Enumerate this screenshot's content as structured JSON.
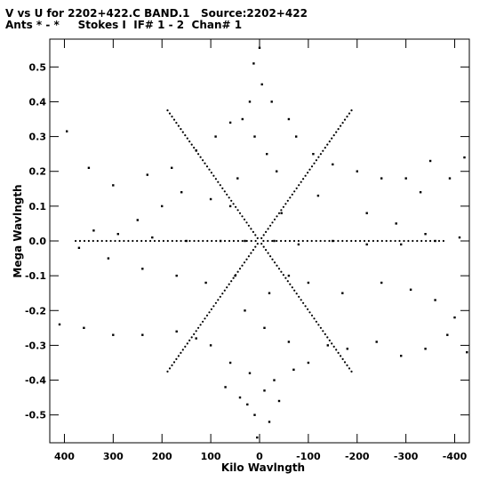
{
  "header": {
    "line1": "V vs U for 2202+422.C BAND.1   Source:2202+422",
    "line2": "Ants * - *     Stokes I  IF# 1 - 2  Chan# 1"
  },
  "chart_data": {
    "type": "scatter",
    "title": "V vs U for 2202+422.C BAND.1   Source:2202+422",
    "subtitle": "Ants * - *     Stokes I  IF# 1 - 2  Chan# 1",
    "xlabel": "Kilo Wavlngth",
    "ylabel": "Mega Wavlngth",
    "xlim": [
      430,
      -430
    ],
    "ylim": [
      -0.58,
      0.58
    ],
    "x_reversed": true,
    "xticks": [
      400,
      300,
      200,
      100,
      0,
      -100,
      -200,
      -300,
      -400
    ],
    "xtick_labels": [
      "400",
      "300",
      "200",
      "100",
      "0",
      "-100",
      "-200",
      "-300",
      "-400"
    ],
    "yticks": [
      0.5,
      0.4,
      0.3,
      0.2,
      0.1,
      0.0,
      -0.1,
      -0.2,
      -0.3,
      -0.4,
      -0.5
    ],
    "ytick_labels": [
      "0.5",
      "0.4",
      "0.3",
      "0.2",
      "0.1",
      "0.0",
      "-0.1",
      "-0.2",
      "-0.3",
      "-0.4",
      "-0.5"
    ],
    "grid": false,
    "marker_color": "#000000",
    "arm_angles_deg": [
      0,
      60,
      120,
      180,
      240,
      300
    ],
    "series": [
      {
        "points": [
          [
            0,
            0.555
          ],
          [
            12,
            0.51
          ],
          [
            -5,
            0.45
          ],
          [
            20,
            0.4
          ],
          [
            35,
            0.35
          ],
          [
            -25,
            0.4
          ],
          [
            -60,
            0.35
          ],
          [
            -75,
            0.3
          ],
          [
            60,
            0.34
          ],
          [
            90,
            0.3
          ],
          [
            -110,
            0.25
          ],
          [
            130,
            0.26
          ],
          [
            -150,
            0.22
          ],
          [
            180,
            0.21
          ],
          [
            -200,
            0.2
          ],
          [
            230,
            0.19
          ],
          [
            -250,
            0.18
          ],
          [
            -300,
            0.18
          ],
          [
            300,
            0.16
          ],
          [
            350,
            0.21
          ],
          [
            395,
            0.315
          ],
          [
            -350,
            0.23
          ],
          [
            -420,
            0.24
          ],
          [
            -390,
            0.18
          ],
          [
            -330,
            0.14
          ],
          [
            160,
            0.14
          ],
          [
            -120,
            0.13
          ],
          [
            100,
            0.12
          ],
          [
            60,
            0.1
          ],
          [
            -45,
            0.08
          ],
          [
            200,
            0.1
          ],
          [
            250,
            0.06
          ],
          [
            -220,
            0.08
          ],
          [
            -280,
            0.05
          ],
          [
            340,
            0.03
          ],
          [
            -340,
            0.02
          ],
          [
            290,
            0.02
          ],
          [
            220,
            0.01
          ],
          [
            150,
            0.0
          ],
          [
            80,
            0.0
          ],
          [
            30,
            0.0
          ],
          [
            -30,
            0.0
          ],
          [
            -80,
            -0.01
          ],
          [
            -150,
            0.0
          ],
          [
            -220,
            -0.01
          ],
          [
            -290,
            -0.01
          ],
          [
            -360,
            0.0
          ],
          [
            -410,
            0.01
          ],
          [
            370,
            -0.02
          ],
          [
            310,
            -0.05
          ],
          [
            240,
            -0.08
          ],
          [
            170,
            -0.1
          ],
          [
            110,
            -0.12
          ],
          [
            50,
            -0.1
          ],
          [
            -60,
            -0.1
          ],
          [
            -100,
            -0.12
          ],
          [
            -170,
            -0.15
          ],
          [
            -250,
            -0.12
          ],
          [
            -310,
            -0.14
          ],
          [
            -360,
            -0.17
          ],
          [
            -400,
            -0.22
          ],
          [
            410,
            -0.24
          ],
          [
            360,
            -0.25
          ],
          [
            300,
            -0.27
          ],
          [
            240,
            -0.27
          ],
          [
            170,
            -0.26
          ],
          [
            130,
            -0.28
          ],
          [
            100,
            -0.3
          ],
          [
            60,
            -0.35
          ],
          [
            20,
            -0.38
          ],
          [
            -30,
            -0.4
          ],
          [
            -70,
            -0.37
          ],
          [
            -100,
            -0.35
          ],
          [
            -140,
            -0.3
          ],
          [
            -180,
            -0.31
          ],
          [
            -240,
            -0.29
          ],
          [
            -290,
            -0.33
          ],
          [
            -340,
            -0.31
          ],
          [
            -385,
            -0.27
          ],
          [
            -425,
            -0.32
          ],
          [
            10,
            -0.5
          ],
          [
            -20,
            -0.52
          ],
          [
            5,
            -0.565
          ],
          [
            25,
            -0.47
          ],
          [
            -10,
            -0.43
          ],
          [
            40,
            -0.45
          ],
          [
            -40,
            -0.46
          ],
          [
            70,
            -0.42
          ],
          [
            -60,
            -0.29
          ],
          [
            -10,
            -0.25
          ],
          [
            30,
            -0.2
          ],
          [
            -20,
            -0.15
          ],
          [
            45,
            0.18
          ],
          [
            -15,
            0.25
          ],
          [
            10,
            0.3
          ],
          [
            -35,
            0.2
          ]
        ]
      }
    ]
  }
}
